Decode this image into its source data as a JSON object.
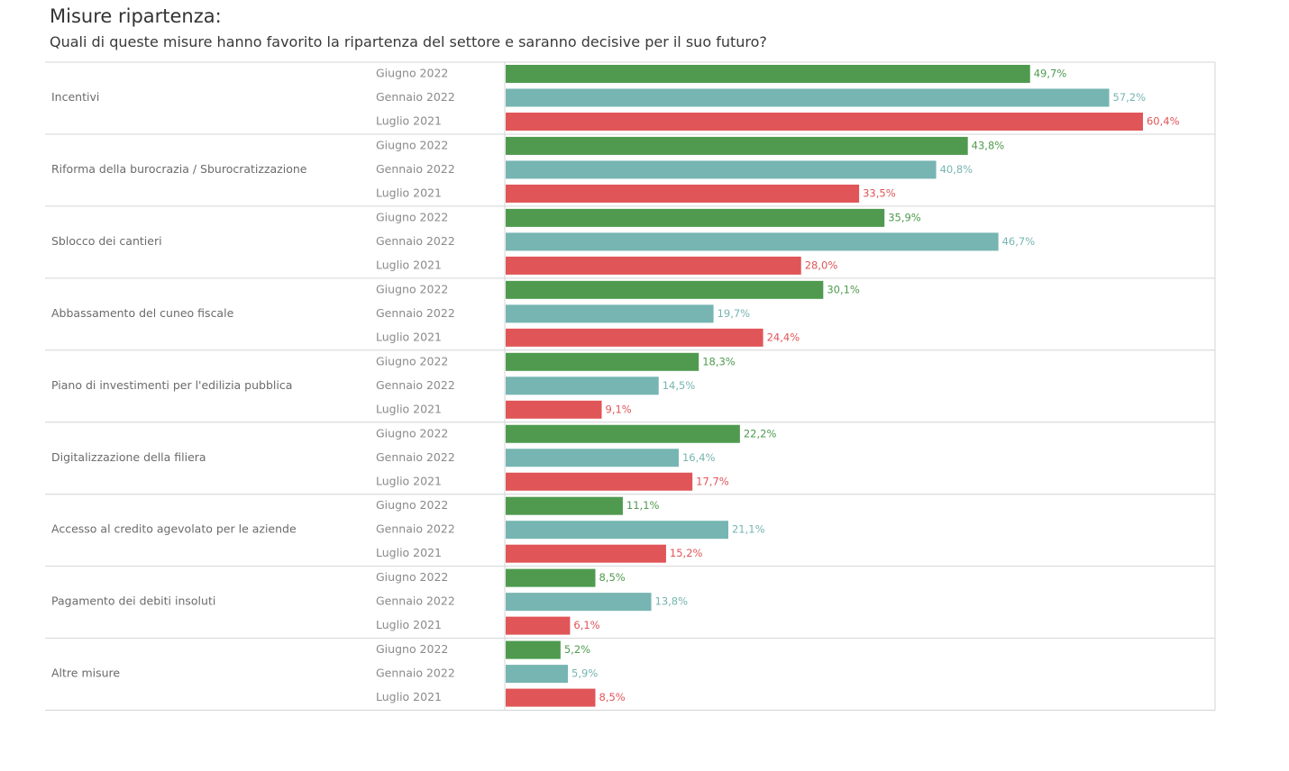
{
  "header": {
    "title": "Misure ripartenza:",
    "subtitle": "Quali di queste misure hanno favorito la ripartenza del settore e saranno decisive per il suo futuro?"
  },
  "chart_data": {
    "type": "bar",
    "orientation": "horizontal",
    "title": "Misure ripartenza:",
    "subtitle": "Quali di queste misure hanno favorito la ripartenza del settore e saranno decisive per il suo futuro?",
    "categories": [
      "Incentivi",
      "Riforma della burocrazia / Sburocratizzazione",
      "Sblocco dei cantieri",
      "Abbassamento del cuneo fiscale",
      "Piano di investimenti per l'edilizia pubblica",
      "Digitalizzazione della filiera",
      "Accesso al credito agevolato per le aziende",
      "Pagamento dei debiti insoluti",
      "Altre misure"
    ],
    "series": [
      {
        "name": "Giugno 2022",
        "color": "#4f9a4f",
        "values": [
          49.7,
          43.8,
          35.9,
          30.1,
          18.3,
          22.2,
          11.1,
          8.5,
          5.2
        ],
        "labels": [
          "49,7%",
          "43,8%",
          "35,9%",
          "30,1%",
          "18,3%",
          "22,2%",
          "11,1%",
          "8,5%",
          "5,2%"
        ]
      },
      {
        "name": "Gennaio 2022",
        "color": "#76b5b1",
        "values": [
          57.2,
          40.8,
          46.7,
          19.7,
          14.5,
          16.4,
          21.1,
          13.8,
          5.9
        ],
        "labels": [
          "57,2%",
          "40,8%",
          "46,7%",
          "19,7%",
          "14,5%",
          "16,4%",
          "21,1%",
          "13,8%",
          "5,9%"
        ]
      },
      {
        "name": "Luglio 2021",
        "color": "#e05558",
        "values": [
          60.4,
          33.5,
          28.0,
          24.4,
          9.1,
          17.7,
          15.2,
          6.1,
          8.5
        ],
        "labels": [
          "60,4%",
          "33,5%",
          "28,0%",
          "24,4%",
          "9,1%",
          "17,7%",
          "15,2%",
          "6,1%",
          "8,5%"
        ]
      }
    ],
    "xlim": [
      0,
      100
    ],
    "xlabel": "",
    "ylabel": "",
    "grid": false,
    "legend": "none"
  }
}
